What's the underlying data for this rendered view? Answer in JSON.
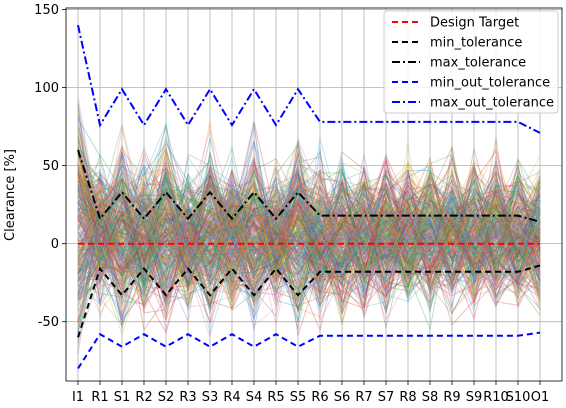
{
  "chart_data": {
    "type": "line",
    "title": "",
    "xlabel": "",
    "ylabel": "Clearance [%]",
    "ylim": [
      -88,
      151
    ],
    "yticks": [
      -50,
      0,
      50,
      100,
      150
    ],
    "grid": true,
    "legend_position": "top-right",
    "categories": [
      "I1",
      "R1",
      "S1",
      "R2",
      "S2",
      "R3",
      "S3",
      "R4",
      "S4",
      "R5",
      "S5",
      "R6",
      "S6",
      "R7",
      "S7",
      "R8",
      "S8",
      "R9",
      "S9",
      "R10",
      "S10",
      "O1"
    ],
    "series": [
      {
        "name": "Design Target",
        "color": "#ff0000",
        "dash": "dashed",
        "values": [
          0,
          0,
          0,
          0,
          0,
          0,
          0,
          0,
          0,
          0,
          0,
          0,
          0,
          0,
          0,
          0,
          0,
          0,
          0,
          0,
          0,
          0
        ]
      },
      {
        "name": "min_tolerance",
        "color": "#000000",
        "dash": "dashed",
        "values": [
          -60,
          -16,
          -33,
          -16,
          -33,
          -16,
          -33,
          -16,
          -33,
          -16,
          -33,
          -18,
          -18,
          -18,
          -18,
          -18,
          -18,
          -18,
          -18,
          -18,
          -18,
          -14
        ]
      },
      {
        "name": "max_tolerance",
        "color": "#000000",
        "dash": "dashdot",
        "values": [
          60,
          16,
          33,
          16,
          33,
          16,
          33,
          16,
          33,
          16,
          33,
          18,
          18,
          18,
          18,
          18,
          18,
          18,
          18,
          18,
          18,
          14
        ]
      },
      {
        "name": "min_out_tolerance",
        "color": "#0000ff",
        "dash": "dashed",
        "values": [
          -80,
          -58,
          -66,
          -58,
          -66,
          -58,
          -66,
          -58,
          -66,
          -58,
          -66,
          -59,
          -59,
          -59,
          -59,
          -59,
          -59,
          -59,
          -59,
          -59,
          -59,
          -57
        ]
      },
      {
        "name": "max_out_tolerance",
        "color": "#0000ff",
        "dash": "dashdot",
        "values": [
          140,
          76,
          99,
          76,
          99,
          76,
          99,
          76,
          99,
          76,
          99,
          78,
          78,
          78,
          78,
          78,
          78,
          78,
          78,
          78,
          78,
          71
        ]
      }
    ],
    "background_samples": {
      "description_visible": false,
      "count": 320,
      "seed": 7,
      "opacity": 0.3,
      "palette": [
        "#1f77b4",
        "#ff7f0e",
        "#2ca02c",
        "#d62728",
        "#9467bd",
        "#8c564b",
        "#e377c2",
        "#7f7f7f",
        "#bcbd22",
        "#17becf"
      ]
    }
  }
}
